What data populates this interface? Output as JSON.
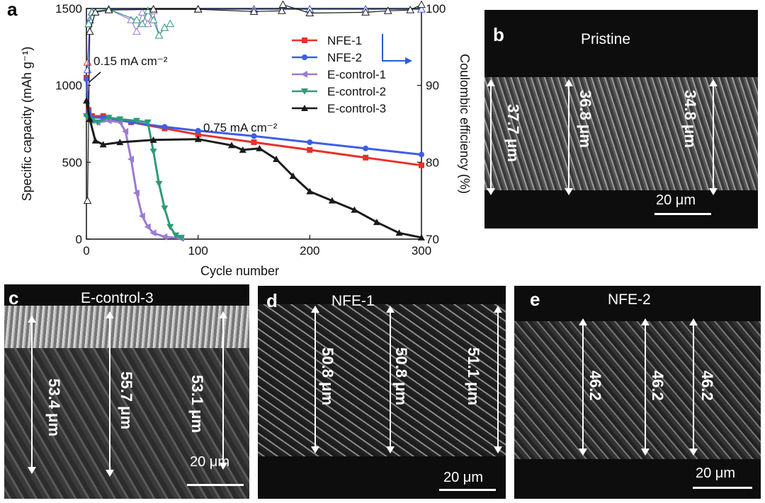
{
  "panel_a": {
    "letter": "a",
    "annotations": {
      "low_rate": "0.15 mA cm⁻²",
      "high_rate": "0.75 mA cm⁻²"
    }
  },
  "chart_data": {
    "type": "line",
    "xlabel": "Cycle number",
    "ylabel": "Specific capacity (mAh g⁻¹)",
    "y2label": "Coulombic efficiency (%)",
    "xlim": [
      0,
      300
    ],
    "ylim": [
      0,
      1500
    ],
    "y2lim": [
      70,
      100
    ],
    "xticks": [
      0,
      100,
      200,
      300
    ],
    "yticks": [
      0,
      500,
      1000,
      1500
    ],
    "y2ticks": [
      70,
      80,
      90,
      100
    ],
    "legend_position": "top-right",
    "series": [
      {
        "name": "NFE-1",
        "color": "#e8312a",
        "marker": "square",
        "x": [
          0,
          2,
          5,
          15,
          40,
          70,
          100,
          150,
          200,
          250,
          300
        ],
        "y": [
          1050,
          840,
          800,
          800,
          760,
          720,
          680,
          630,
          580,
          530,
          480
        ],
        "ce_x": [
          1,
          3,
          5,
          20,
          60,
          100,
          150,
          200,
          250,
          300
        ],
        "ce_y": [
          93,
          98.5,
          99.5,
          99.8,
          99.9,
          99.9,
          99.9,
          99.9,
          99.9,
          99.9
        ]
      },
      {
        "name": "NFE-2",
        "color": "#3d5ee8",
        "marker": "circle",
        "x": [
          0,
          2,
          5,
          15,
          40,
          70,
          100,
          150,
          200,
          250,
          300
        ],
        "y": [
          1040,
          830,
          790,
          790,
          760,
          730,
          705,
          670,
          630,
          590,
          550
        ],
        "ce_x": [
          1,
          3,
          5,
          20,
          60,
          100,
          150,
          200,
          250,
          300
        ],
        "ce_y": [
          92,
          98.5,
          99.6,
          99.9,
          99.9,
          99.9,
          99.9,
          99.9,
          99.9,
          99.9
        ]
      },
      {
        "name": "E-control-1",
        "color": "#9b7ad6",
        "marker": "triangle-left",
        "x": [
          0,
          2,
          5,
          10,
          20,
          30,
          35,
          40,
          45,
          50,
          55,
          60,
          70,
          85
        ],
        "y": [
          800,
          780,
          770,
          760,
          770,
          760,
          700,
          520,
          300,
          150,
          80,
          40,
          15,
          5
        ],
        "ce_x": [
          2,
          5,
          20,
          40,
          45,
          50,
          55,
          60,
          65,
          70
        ],
        "ce_y": [
          98,
          99.5,
          99.9,
          98.5,
          97,
          99.5,
          98,
          99.7,
          96.5,
          97.5
        ]
      },
      {
        "name": "E-control-2",
        "color": "#2e9b77",
        "marker": "triangle-down",
        "x": [
          0,
          2,
          5,
          10,
          20,
          30,
          45,
          55,
          60,
          65,
          70,
          75,
          80,
          85
        ],
        "y": [
          800,
          780,
          770,
          760,
          790,
          780,
          770,
          760,
          570,
          360,
          200,
          80,
          25,
          10
        ],
        "ce_x": [
          2,
          5,
          20,
          45,
          50,
          55,
          60,
          65,
          70,
          75
        ],
        "ce_y": [
          98,
          99.5,
          99.9,
          98.5,
          98,
          99.7,
          98.5,
          96.5,
          97.5,
          98
        ]
      },
      {
        "name": "E-control-3",
        "color": "#1a1a1a",
        "marker": "triangle-up",
        "x": [
          0,
          3,
          8,
          15,
          30,
          60,
          100,
          130,
          140,
          155,
          170,
          185,
          200,
          220,
          240,
          260,
          280,
          300
        ],
        "y": [
          900,
          780,
          640,
          615,
          630,
          645,
          650,
          610,
          580,
          590,
          520,
          410,
          310,
          250,
          190,
          110,
          40,
          10
        ],
        "ce_x": [
          1,
          3,
          8,
          20,
          60,
          100,
          150,
          175,
          176,
          200,
          250,
          270,
          290,
          300
        ],
        "ce_y": [
          75,
          97,
          99.5,
          99.8,
          99.9,
          99.9,
          99.6,
          99.7,
          100.5,
          99.4,
          99.5,
          99.7,
          99.8,
          100.5
        ]
      }
    ]
  },
  "sem_panels": [
    {
      "letter": "b",
      "title": "Pristine",
      "measurements": [
        "37.7 μm",
        "36.8 μm",
        "34.8 μm"
      ],
      "scale": "20 μm"
    },
    {
      "letter": "c",
      "title": "E-control-3",
      "measurements": [
        "53.4 μm",
        "55.7 μm",
        "53.1 μm"
      ],
      "scale": "20 μm"
    },
    {
      "letter": "d",
      "title": "NFE-1",
      "measurements": [
        "50.8 μm",
        "50.8 μm",
        "51.1 μm"
      ],
      "scale": "20 μm"
    },
    {
      "letter": "e",
      "title": "NFE-2",
      "measurements": [
        "46.2",
        "46.2",
        "46.2"
      ],
      "scale": "20 μm"
    }
  ]
}
